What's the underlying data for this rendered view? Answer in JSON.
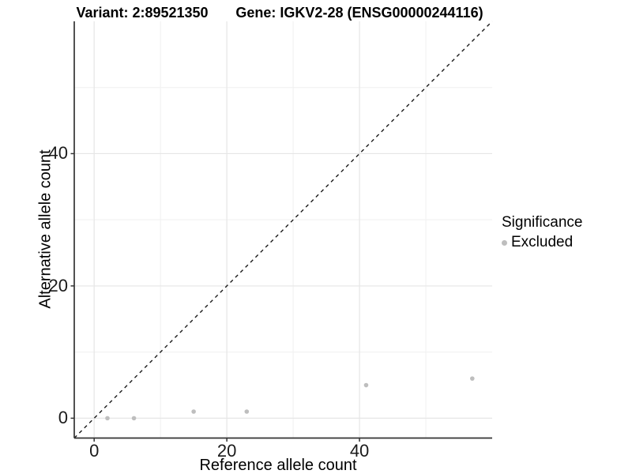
{
  "chart_data": {
    "type": "scatter",
    "title_left": "Variant: 2:89521350",
    "title_right": "Gene: IGKV2-28 (ENSG00000244116)",
    "xlabel": "Reference allele count",
    "ylabel": "Alternative allele count",
    "xlim": [
      -3,
      60
    ],
    "ylim": [
      -3,
      60
    ],
    "x_ticks": [
      0,
      20,
      40
    ],
    "y_ticks": [
      0,
      20,
      40
    ],
    "x_minor_gridlines": [
      10,
      30,
      50
    ],
    "y_minor_gridlines": [
      10,
      30,
      50
    ],
    "grid": true,
    "reference_line": {
      "type": "identity y=x",
      "style": "dashed",
      "color": "#1a1a1a"
    },
    "series": [
      {
        "name": "Excluded",
        "color": "#bebebe",
        "points": [
          [
            2,
            0
          ],
          [
            6,
            0
          ],
          [
            15,
            1
          ],
          [
            23,
            1
          ],
          [
            41,
            5
          ],
          [
            57,
            6
          ]
        ]
      }
    ],
    "legend": {
      "title": "Significance",
      "position": "right",
      "items": [
        {
          "label": "Excluded",
          "color": "#bebebe"
        }
      ]
    },
    "colors": {
      "grid_major": "#e6e6e6",
      "grid_minor": "#f2f2f2",
      "axis_line": "#333333",
      "tick_text": "#1a1a1a",
      "point": "#bebebe"
    }
  }
}
